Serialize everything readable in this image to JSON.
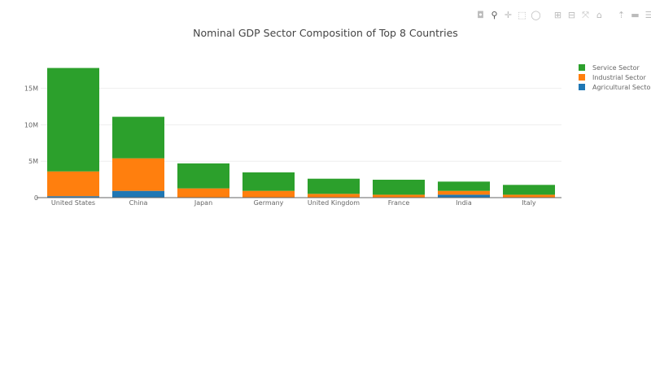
{
  "modebar": [
    {
      "icon": "camera-icon",
      "glyph": "◘"
    },
    {
      "icon": "zoom-icon",
      "glyph": "⚲",
      "active": true
    },
    {
      "icon": "pan-icon",
      "glyph": "✛"
    },
    {
      "icon": "box-select-icon",
      "glyph": "⬚"
    },
    {
      "icon": "lasso-select-icon",
      "glyph": "◯"
    },
    {
      "icon": "zoom-in-icon",
      "glyph": "⊞"
    },
    {
      "icon": "zoom-out-icon",
      "glyph": "⊟"
    },
    {
      "icon": "autoscale-icon",
      "glyph": "⤧"
    },
    {
      "icon": "reset-axes-icon",
      "glyph": "⌂"
    },
    {
      "icon": "spike-lines-icon",
      "glyph": "⇡"
    },
    {
      "icon": "hover-closest-icon",
      "glyph": "▬"
    },
    {
      "icon": "hover-compare-icon",
      "glyph": "☰"
    },
    {
      "icon": "plotly-logo-icon",
      "glyph": "▥"
    }
  ],
  "chart_data": {
    "type": "bar",
    "barmode": "stack",
    "title": "Nominal GDP Sector Composition of Top 8 Countries",
    "categories": [
      "United States",
      "China",
      "Japan",
      "Germany",
      "United Kingdom",
      "France",
      "India",
      "Italy"
    ],
    "series": [
      {
        "name": "Agricultural Sector",
        "color": "#1f77b4",
        "values": [
          0.2,
          0.93,
          0.05,
          0.03,
          0.02,
          0.04,
          0.4,
          0.04
        ]
      },
      {
        "name": "Industrial Sector",
        "color": "#ff7f0e",
        "values": [
          3.4,
          4.47,
          1.22,
          0.9,
          0.5,
          0.36,
          0.53,
          0.36
        ]
      },
      {
        "name": "Service Sector",
        "color": "#2ca02c",
        "values": [
          14.2,
          5.7,
          3.43,
          2.54,
          2.08,
          2.06,
          1.27,
          1.35
        ]
      }
    ],
    "value_unit": "M",
    "ylim": [
      0,
      18.2
    ],
    "yticks": [
      0,
      5,
      10,
      15
    ],
    "ytick_labels": [
      "0",
      "5M",
      "10M",
      "15M"
    ],
    "grid": true,
    "legend_position": "top-right",
    "legend_order": [
      "Service Sector",
      "Industrial Sector",
      "Agricultural Sector"
    ]
  }
}
